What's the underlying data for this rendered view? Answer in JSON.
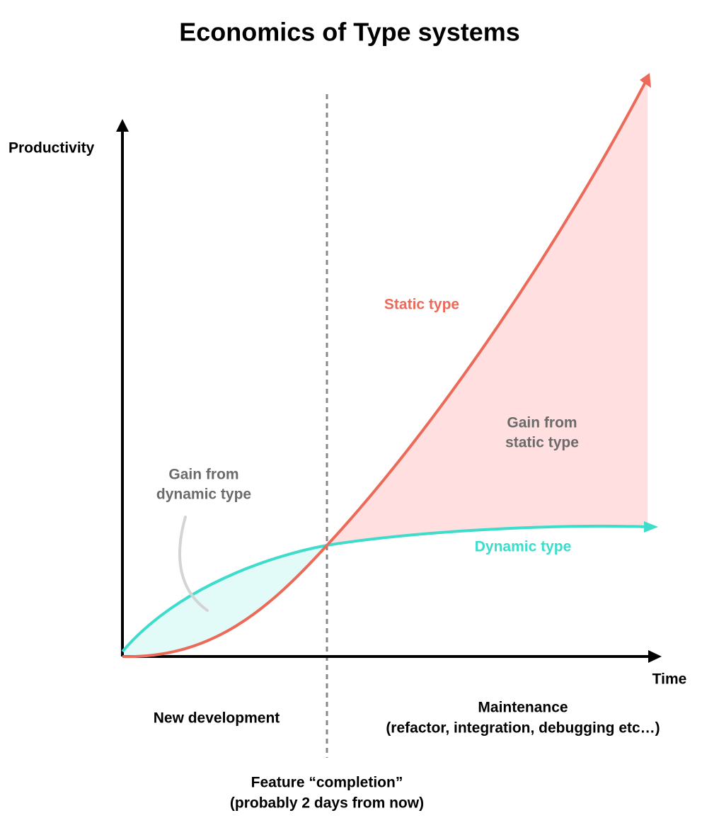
{
  "title": "Economics of Type systems",
  "axes": {
    "y_label": "Productivity",
    "x_label": "Time"
  },
  "curves": {
    "static": "Static type",
    "dynamic": "Dynamic type"
  },
  "regions": {
    "static_gain": [
      "Gain from",
      "static type"
    ],
    "dynamic_gain": [
      "Gain from",
      "dynamic type"
    ]
  },
  "phases": {
    "new_development": "New development",
    "maintenance": [
      "Maintenance",
      "(refactor, integration, debugging etc…)"
    ]
  },
  "milestone": [
    "Feature “completion”",
    "(probably 2 days from now)"
  ]
}
